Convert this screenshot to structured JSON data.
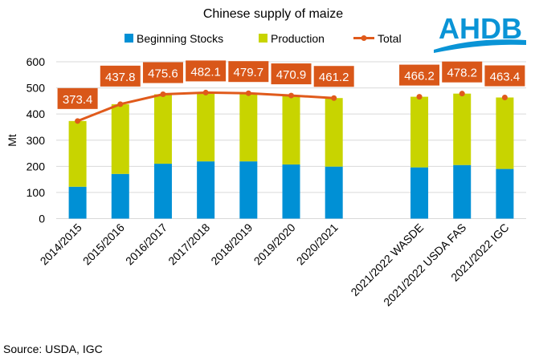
{
  "logo_text": "AHDB",
  "source": "Source: USDA, IGC",
  "colors": {
    "stocks": "#0090d5",
    "production": "#c8d400",
    "total": "#e05a1b",
    "label_bg": "#d95719",
    "logo": "#0a94d6"
  },
  "chart_data": {
    "type": "bar",
    "stacked": true,
    "title": "Chinese supply of maize",
    "ylabel": "Mt",
    "xlabel": "",
    "ylim": [
      0,
      600
    ],
    "yticks": [
      0,
      100,
      200,
      300,
      400,
      500,
      600
    ],
    "grid": true,
    "legend_position": "top",
    "categories": [
      "2014/2015",
      "2015/2016",
      "2016/2017",
      "2017/2018",
      "2018/2019",
      "2019/2020",
      "2020/2021",
      "",
      "2021/2022 WASDE",
      "2021/2022 USDA FAS",
      "2021/2022 IGC"
    ],
    "series": [
      {
        "name": "Beginning Stocks",
        "type": "bar",
        "values": [
          122,
          171,
          210,
          219,
          219,
          207,
          199,
          null,
          196,
          205,
          190
        ]
      },
      {
        "name": "Production",
        "type": "bar",
        "values": [
          251.4,
          266.8,
          265.6,
          263.1,
          260.7,
          263.9,
          262.2,
          null,
          270.2,
          273.2,
          273.4
        ]
      },
      {
        "name": "Total",
        "type": "line",
        "values": [
          373.4,
          437.8,
          475.6,
          482.1,
          479.7,
          470.9,
          461.2,
          null,
          466.2,
          478.2,
          463.4
        ],
        "labels": [
          "373.4",
          "437.8",
          "475.6",
          "482.1",
          "479.7",
          "470.9",
          "461.2",
          "",
          "466.2",
          "478.2",
          "463.4"
        ]
      }
    ]
  }
}
